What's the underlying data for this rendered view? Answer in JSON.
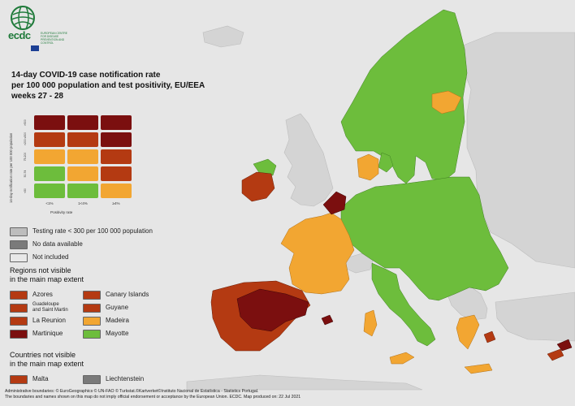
{
  "logo": {
    "word": "ecdc",
    "subtitle": "EUROPEAN CENTRE FOR DISEASE PREVENTION AND CONTROL"
  },
  "title": {
    "line1": "14-day COVID-19 case notification rate",
    "line2": "per 100 000 population and test positivity, EU/EEA",
    "line3": "weeks 27 - 28"
  },
  "matrix": {
    "y_axis_label": "14-day notification rate per 100 000 population",
    "x_axis_label": "Positivity rate",
    "y_ticks": [
      ">500",
      ">200 ≤500",
      "75-200",
      "50-74",
      "<50"
    ],
    "x_ticks": [
      "<1%",
      "1<4%",
      "≥4%"
    ],
    "cells": [
      [
        "#7b0f0f",
        "#7b0f0f",
        "#7b0f0f"
      ],
      [
        "#b43a12",
        "#b43a12",
        "#7b0f0f"
      ],
      [
        "#f2a632",
        "#f2a632",
        "#b43a12"
      ],
      [
        "#6dbd3c",
        "#f2a632",
        "#b43a12"
      ],
      [
        "#6dbd3c",
        "#6dbd3c",
        "#f2a632"
      ]
    ]
  },
  "legend_status": [
    {
      "label": "Testing rate < 300 per 100 000 population",
      "color": "#bdbdbd"
    },
    {
      "label": "No data available",
      "color": "#7a7a7a"
    },
    {
      "label": "Not included",
      "color": "#e8e8e8"
    }
  ],
  "regions_heading": "Regions not visible\nin the main map extent",
  "regions": [
    {
      "label": "Azores",
      "color": "#b43a12"
    },
    {
      "label": "Canary Islands",
      "color": "#b43a12"
    },
    {
      "label": "Guadeloupe\nand Saint Martin",
      "color": "#b43a12"
    },
    {
      "label": "Guyane",
      "color": "#b43a12"
    },
    {
      "label": "La Reunion",
      "color": "#b43a12"
    },
    {
      "label": "Madeira",
      "color": "#f2a632"
    },
    {
      "label": "Martinique",
      "color": "#7b0f0f"
    },
    {
      "label": "Mayotte",
      "color": "#6dbd3c"
    }
  ],
  "countries_heading": "Countries not visible\nin the main map extent",
  "countries": [
    {
      "label": "Malta",
      "color": "#b43a12"
    },
    {
      "label": "Liechtenstein",
      "color": "#7a7a7a"
    }
  ],
  "footer": {
    "line1": "Administrative boundaries: © EuroGeographics © UN-FAO © Turkstat.©Kartverket©Instituto Nacional de Estatística - Statistics Portugal.",
    "line2": "The boundaries and names shown on this map do not imply official endorsement or acceptance by the European Union. ECDC. Map produced on: 22 Jul 2021"
  },
  "colors": {
    "dark_red": "#7b0f0f",
    "red": "#b43a12",
    "orange": "#f2a632",
    "green": "#6dbd3c",
    "not_included": "#d4d4d4",
    "sea": "#e6e6e6"
  }
}
